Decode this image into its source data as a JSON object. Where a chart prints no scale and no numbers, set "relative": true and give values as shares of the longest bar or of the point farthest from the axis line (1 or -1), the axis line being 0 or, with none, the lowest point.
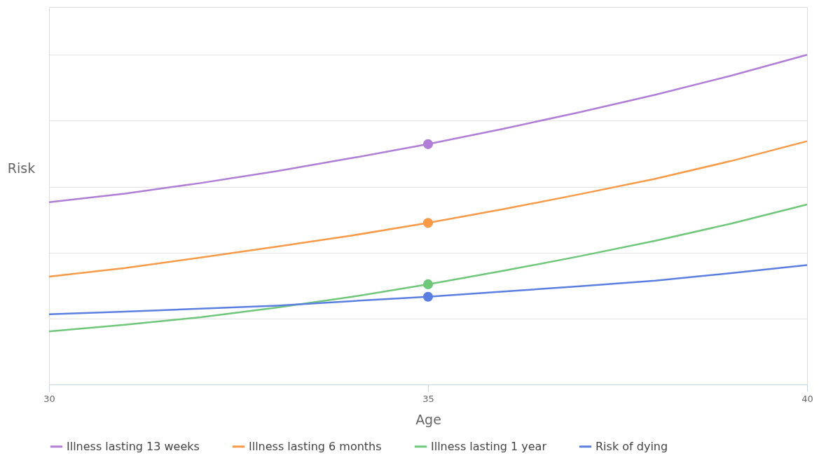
{
  "chart_data": {
    "type": "line",
    "relative": true,
    "xlabel": "Age",
    "ylabel": "Risk",
    "xlim": [
      30,
      40
    ],
    "xticks": [
      30,
      35,
      40
    ],
    "grid": "y",
    "legend": "bottom",
    "line_style": "solid",
    "marker": "none",
    "x": [
      30,
      31,
      32,
      33,
      34,
      35,
      36,
      37,
      38,
      39,
      40
    ],
    "series": [
      {
        "name": "Illness lasting 13 weeks",
        "color": "#b07ed6",
        "values": [
          0.553,
          0.579,
          0.611,
          0.647,
          0.687,
          0.729,
          0.776,
          0.826,
          0.879,
          0.937,
          1.0
        ]
      },
      {
        "name": "Illness lasting 6 months",
        "color": "#f89a48",
        "values": [
          0.327,
          0.353,
          0.385,
          0.418,
          0.452,
          0.49,
          0.532,
          0.577,
          0.624,
          0.678,
          0.738
        ]
      },
      {
        "name": "Illness lasting 1 year",
        "color": "#6fc77a",
        "values": [
          0.161,
          0.181,
          0.204,
          0.233,
          0.266,
          0.304,
          0.345,
          0.389,
          0.436,
          0.488,
          0.546
        ]
      },
      {
        "name": "Risk of dying",
        "color": "#5b7fe0",
        "values": [
          0.213,
          0.221,
          0.23,
          0.239,
          0.253,
          0.266,
          0.282,
          0.298,
          0.315,
          0.338,
          0.362
        ]
      },
      {
        "type": "scatter",
        "marker": "circle",
        "color": "#b07ed6",
        "values": [
          null,
          null,
          null,
          null,
          null,
          0.729,
          null,
          null,
          null,
          null,
          null
        ]
      },
      {
        "type": "scatter",
        "marker": "circle",
        "color": "#f89a48",
        "values": [
          null,
          null,
          null,
          null,
          null,
          0.49,
          null,
          null,
          null,
          null,
          null
        ]
      },
      {
        "type": "scatter",
        "marker": "circle",
        "color": "#6fc77a",
        "values": [
          null,
          null,
          null,
          null,
          null,
          0.304,
          null,
          null,
          null,
          null,
          null
        ]
      },
      {
        "type": "scatter",
        "marker": "circle",
        "color": "#5b7fe0",
        "values": [
          null,
          null,
          null,
          null,
          null,
          0.266,
          null,
          null,
          null,
          null,
          null
        ]
      }
    ]
  }
}
